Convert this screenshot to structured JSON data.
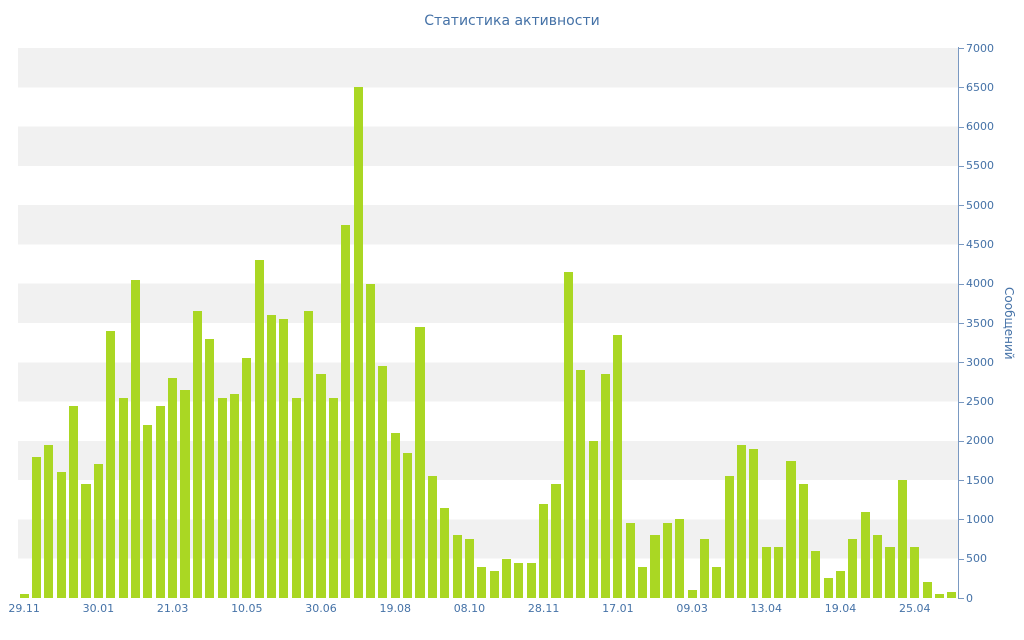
{
  "chart_data": {
    "type": "bar",
    "title": "Статистика активности",
    "xlabel": "",
    "ylabel": "Сообщений",
    "ylim": [
      0,
      7000
    ],
    "ytick_step": 500,
    "legend": "none",
    "bar_color": "#aad723",
    "axis_color": "#4572a7",
    "grid_bands": {
      "color": "#f1f1f1",
      "alt_color": "#ffffff"
    },
    "x_tick_labels": [
      {
        "index": 0,
        "label": "29.11"
      },
      {
        "index": 6,
        "label": "30.01"
      },
      {
        "index": 12,
        "label": "21.03"
      },
      {
        "index": 18,
        "label": "10.05"
      },
      {
        "index": 24,
        "label": "30.06"
      },
      {
        "index": 30,
        "label": "19.08"
      },
      {
        "index": 36,
        "label": "08.10"
      },
      {
        "index": 42,
        "label": "28.11"
      },
      {
        "index": 48,
        "label": "17.01"
      },
      {
        "index": 54,
        "label": "09.03"
      },
      {
        "index": 60,
        "label": "13.04"
      },
      {
        "index": 66,
        "label": "19.04"
      },
      {
        "index": 72,
        "label": "25.04"
      }
    ],
    "values": [
      50,
      1800,
      1950,
      1600,
      2450,
      1450,
      1700,
      3400,
      2550,
      4050,
      2200,
      2450,
      2800,
      2650,
      3650,
      3300,
      2550,
      2600,
      3050,
      4300,
      3600,
      3550,
      2550,
      3650,
      2850,
      2550,
      4750,
      6500,
      4000,
      2950,
      2100,
      1850,
      3450,
      1550,
      1150,
      800,
      750,
      400,
      350,
      500,
      450,
      450,
      1200,
      1450,
      4150,
      2900,
      2000,
      2850,
      3350,
      950,
      400,
      800,
      950,
      1000,
      100,
      750,
      400,
      1550,
      1950,
      1900,
      650,
      650,
      1750,
      1450,
      600,
      250,
      350,
      750,
      1100,
      800,
      650,
      1500,
      650,
      200,
      50,
      80
    ]
  }
}
